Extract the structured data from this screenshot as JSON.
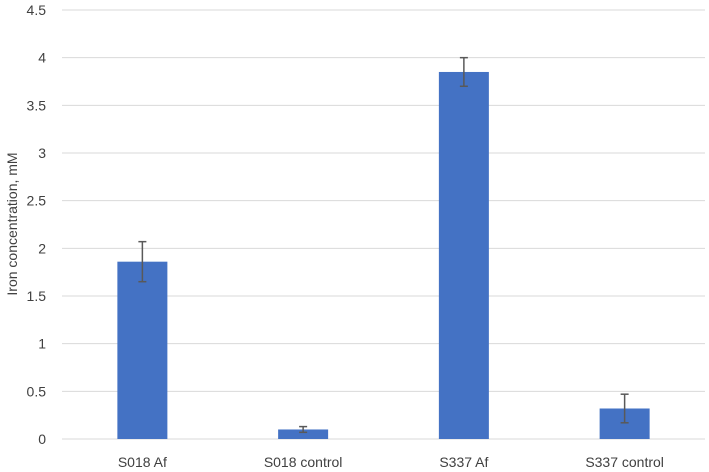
{
  "chart_data": {
    "type": "bar",
    "title": "",
    "xlabel": "",
    "ylabel": "Iron concentration, mM",
    "ylim": [
      0,
      4.5
    ],
    "yticks": [
      "0",
      "0.5",
      "1",
      "1.5",
      "2",
      "2.5",
      "3",
      "3.5",
      "4",
      "4.5"
    ],
    "grid": true,
    "categories": [
      "S018 Af",
      "S018 control",
      "S337 Af",
      "S337 control"
    ],
    "series": [
      {
        "values": [
          1.86,
          0.1,
          3.85,
          0.32
        ],
        "error_low": [
          1.65,
          0.07,
          3.7,
          0.17
        ],
        "error_high": [
          2.07,
          0.13,
          4.0,
          0.47
        ]
      }
    ],
    "colors": {
      "bar": "#4472C4",
      "grid": "#D9D9D9",
      "error": "#595959",
      "text": "#404040"
    }
  }
}
